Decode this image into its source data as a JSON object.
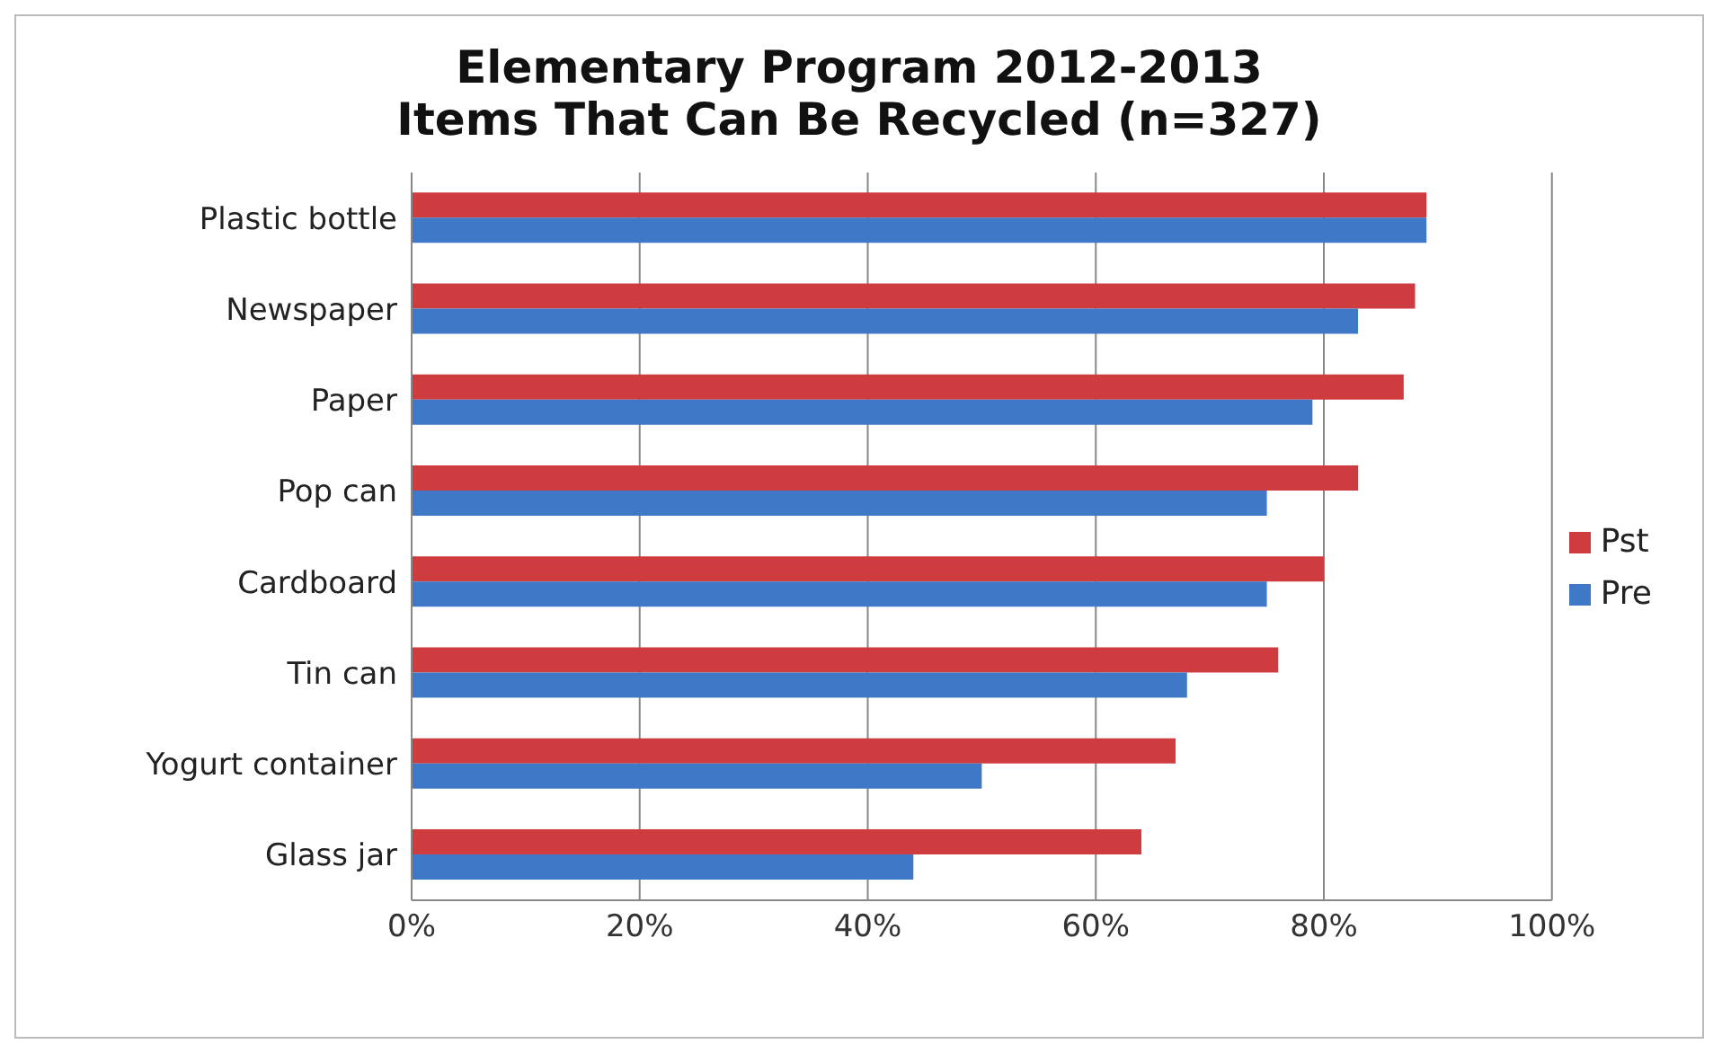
{
  "chart_data": {
    "type": "bar",
    "orientation": "horizontal",
    "title": "Elementary Program 2012-2013",
    "subtitle": "Items That Can Be Recycled (n=327)",
    "categories": [
      "Plastic bottle",
      "Newspaper",
      "Paper",
      "Pop can",
      "Cardboard",
      "Tin can",
      "Yogurt container",
      "Glass jar"
    ],
    "series": [
      {
        "name": "Pst",
        "color": "#cf3c40",
        "values": [
          0.89,
          0.88,
          0.87,
          0.83,
          0.8,
          0.76,
          0.67,
          0.64
        ]
      },
      {
        "name": "Pre",
        "color": "#3e78c6",
        "values": [
          0.89,
          0.83,
          0.79,
          0.75,
          0.75,
          0.68,
          0.5,
          0.44
        ]
      }
    ],
    "xlim": [
      0,
      1
    ],
    "xticks": [
      {
        "value": 0,
        "label": "0%"
      },
      {
        "value": 0.2,
        "label": "20%"
      },
      {
        "value": 0.4,
        "label": "40%"
      },
      {
        "value": 0.6,
        "label": "60%"
      },
      {
        "value": 0.8,
        "label": "80%"
      },
      {
        "value": 1,
        "label": "100%"
      }
    ],
    "grid": "x",
    "legend": "right"
  }
}
